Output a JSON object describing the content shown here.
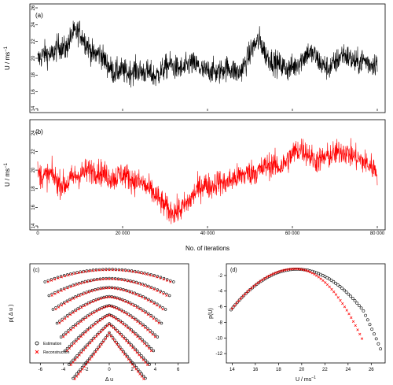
{
  "figure": {
    "panel_a": {
      "tag": "(a)",
      "ylabel": "U / ms",
      "ylabel_sup": "−1"
    },
    "panel_b": {
      "tag": "(b)",
      "ylabel": "U / ms",
      "ylabel_sup": "−1",
      "xlabel": "No. of iterations"
    },
    "panel_c": {
      "tag": "(c)",
      "ylabel": "p( Δ u )",
      "xlabel": "Δ u"
    },
    "panel_d": {
      "tag": "(d)",
      "ylabel": "p(U)",
      "xlabel": "U / ms",
      "xlabel_sup": "−1"
    },
    "legend": {
      "estimation": "Estimation",
      "reconstruction": "Reconstruction"
    },
    "colors": {
      "estimation": "#000000",
      "reconstruction": "#ff0000"
    }
  },
  "chart_data": [
    {
      "type": "line",
      "panel": "a",
      "title": "",
      "xlabel": "",
      "ylabel": "U / ms−1",
      "xlim": [
        0,
        80000
      ],
      "ylim": [
        14,
        26
      ],
      "yticks": [
        14,
        16,
        18,
        20,
        22,
        24,
        26
      ],
      "color": "#000000",
      "series": [
        {
          "values": [
            19.8,
            20.6,
            20.3,
            21.5,
            21.0,
            22.9,
            23.2,
            21.8,
            20.4,
            20.6,
            19.3,
            18.3,
            18.6,
            18.2,
            18.6,
            18.4,
            18.3,
            17.8,
            18.6,
            19.3,
            18.8,
            18.7,
            19.4,
            19.1,
            18.4,
            18.6,
            18.2,
            18.9,
            18.7,
            18.2,
            19.4,
            21.3,
            22.2,
            20.3,
            19.6,
            19.2,
            18.7,
            19.0,
            19.8,
            20.7,
            20.3,
            19.2,
            18.8,
            19.5,
            20.6,
            20.0,
            19.4,
            19.8,
            19.3,
            19.5
          ]
        }
      ]
    },
    {
      "type": "line",
      "panel": "b",
      "title": "",
      "xlabel": "No. of iterations",
      "ylabel": "U / ms−1",
      "xlim": [
        0,
        80000
      ],
      "ylim": [
        14,
        25
      ],
      "yticks": [
        14,
        16,
        18,
        20,
        22,
        24
      ],
      "xticks": [
        0,
        20000,
        40000,
        60000,
        80000
      ],
      "xticklabels": [
        "0",
        "20 000",
        "40 000",
        "60 000",
        "80 000"
      ],
      "color": "#ff0000",
      "series": [
        {
          "values": [
            19.6,
            19.3,
            19.6,
            18.6,
            18.4,
            19.2,
            19.5,
            19.9,
            20.0,
            19.8,
            19.4,
            19.1,
            19.6,
            19.3,
            18.8,
            18.6,
            18.0,
            17.3,
            16.4,
            15.6,
            15.5,
            16.0,
            16.8,
            17.9,
            18.5,
            18.2,
            18.8,
            18.5,
            19.0,
            19.3,
            19.6,
            19.8,
            19.9,
            20.5,
            20.6,
            20.3,
            21.0,
            21.9,
            22.3,
            21.8,
            21.0,
            21.2,
            21.5,
            21.8,
            22.1,
            21.7,
            21.3,
            20.9,
            20.5,
            19.9
          ]
        }
      ]
    },
    {
      "type": "scatter",
      "panel": "c",
      "title": "",
      "xlabel": "Δ u",
      "ylabel": "p( Δ u )",
      "xlim": [
        -6.5,
        6.5
      ],
      "xticks": [
        -6,
        -4,
        -2,
        0,
        2,
        4,
        6
      ],
      "log_scale_y": true,
      "series": [
        {
          "name": "Estimation",
          "marker": "circle",
          "color": "#000000",
          "curves": 8
        },
        {
          "name": "Reconstruction",
          "marker": "cross",
          "color": "#ff0000",
          "curves": 8
        }
      ]
    },
    {
      "type": "scatter",
      "panel": "d",
      "title": "",
      "xlabel": "U / ms−1",
      "ylabel": "p(U)",
      "xlim": [
        13.5,
        27.2
      ],
      "ylim": [
        -13.2,
        -0.5
      ],
      "xticks": [
        14,
        16,
        18,
        20,
        22,
        24,
        26
      ],
      "yticks": [
        -2,
        -4,
        -6,
        -8,
        -10,
        -12
      ],
      "log_scale_y": true,
      "series": [
        {
          "name": "Estimation",
          "marker": "circle",
          "color": "#000000",
          "range": [
            13.9,
            26.8
          ],
          "peak": 19.6
        },
        {
          "name": "Reconstruction",
          "marker": "cross",
          "color": "#ff0000",
          "range": [
            14.0,
            25.2
          ],
          "peak": 19.5
        }
      ]
    }
  ]
}
